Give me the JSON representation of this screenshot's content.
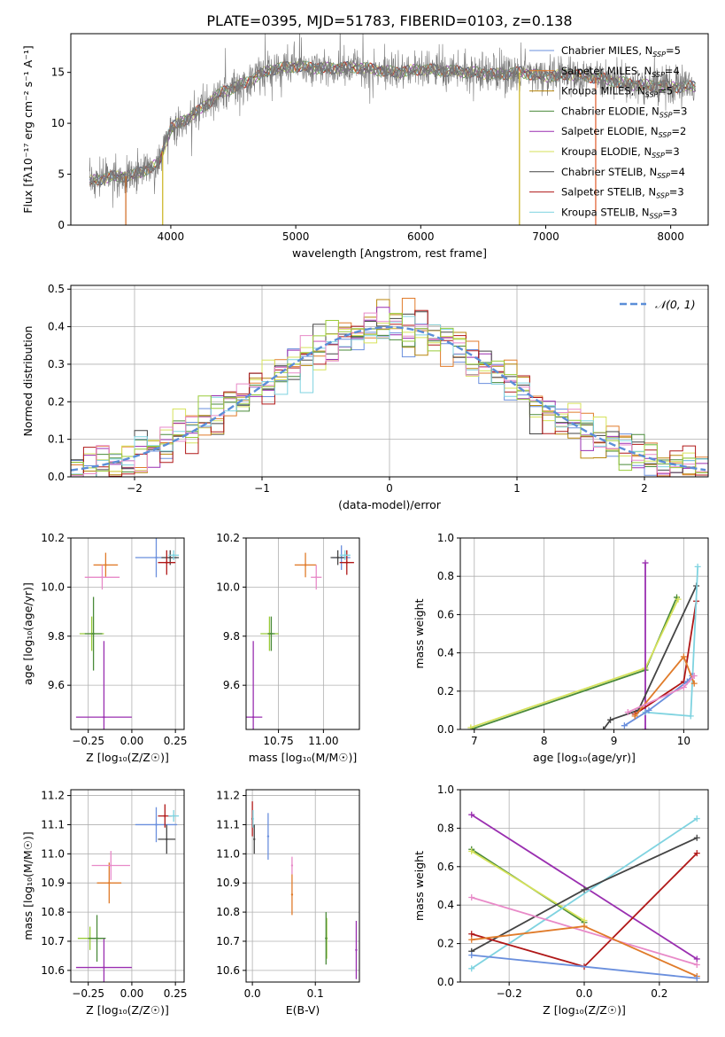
{
  "figure_title": "PLATE=0395, MJD=51783, FIBERID=0103, z=0.138",
  "colors": {
    "Chabrier MILES": "#6a8fdd",
    "Salpeter MILES": "#e07b2a",
    "Kroupa MILES": "#b8860b",
    "Chabrier ELODIE": "#4a8a3a",
    "Salpeter ELODIE": "#9a2fb0",
    "Kroupa ELODIE": "#d6e25a",
    "Chabrier STELIB": "#444444",
    "Salpeter STELIB": "#b01818",
    "Kroupa STELIB": "#7fd3e0",
    "pink": "#e88ac8",
    "lime": "#9acb3a",
    "normal_curve": "#5b8ed8",
    "grid": "#b0b0b0"
  },
  "chart_data": [
    {
      "id": "spectrum",
      "type": "line",
      "xlabel": "wavelength [Angstrom, rest frame]",
      "ylabel": "Flux [fλ10⁻¹⁷ erg cm⁻² s⁻¹ A⁻¹]",
      "xlim": [
        3200,
        8300
      ],
      "ylim": [
        0,
        18.8
      ],
      "xticks": [
        "4000",
        "5000",
        "6000",
        "7000",
        "8000"
      ],
      "yticks": [
        "0",
        "5",
        "10",
        "15"
      ],
      "legend_position": "top-right",
      "legend": [
        "Chabrier MILES, N_SSP=5",
        "Salpeter MILES, N_SSP=4",
        "Kroupa MILES, N_SSP=5",
        "Chabrier ELODIE, N_SSP=3",
        "Salpeter ELODIE, N_SSP=2",
        "Kroupa ELODIE, N_SSP=3",
        "Chabrier STELIB, N_SSP=4",
        "Salpeter STELIB, N_SSP=3",
        "Kroupa STELIB, N_SSP=3"
      ],
      "continuum": [
        [
          3350,
          4.3
        ],
        [
          3500,
          4.7
        ],
        [
          3700,
          4.9
        ],
        [
          3900,
          6.0
        ],
        [
          4000,
          9.5
        ],
        [
          4200,
          11.0
        ],
        [
          4400,
          13.0
        ],
        [
          4600,
          14.0
        ],
        [
          4800,
          15.3
        ],
        [
          5000,
          15.6
        ],
        [
          5200,
          15.4
        ],
        [
          5500,
          15.5
        ],
        [
          5800,
          15.0
        ],
        [
          6000,
          15.3
        ],
        [
          6300,
          15.1
        ],
        [
          6600,
          14.8
        ],
        [
          6800,
          15.0
        ],
        [
          7000,
          14.6
        ],
        [
          7200,
          14.8
        ],
        [
          7400,
          14.5
        ],
        [
          7700,
          13.8
        ],
        [
          8000,
          13.6
        ],
        [
          8200,
          13.6
        ]
      ],
      "dips": [
        [
          3640,
          0
        ],
        [
          3935,
          0
        ],
        [
          6790,
          0
        ],
        [
          7400,
          0
        ]
      ]
    },
    {
      "id": "residuals",
      "type": "histogram",
      "xlabel": "(data-model)/error",
      "ylabel": "Normed distribution",
      "xlim": [
        -2.5,
        2.5
      ],
      "ylim": [
        0,
        0.51
      ],
      "xticks": [
        "−2",
        "−1",
        "0",
        "1",
        "2"
      ],
      "yticks": [
        "0.0",
        "0.1",
        "0.2",
        "0.3",
        "0.4",
        "0.5"
      ],
      "legend_position": "top-right",
      "legend": [
        "𝒩(0, 1)"
      ],
      "bin_width": 0.1
    },
    {
      "id": "age-vs-Z",
      "type": "scatter",
      "xlabel": "Z [log₁₀(Z/Z☉)]",
      "ylabel": "age  [log₁₀(age/yr)]",
      "xlim": [
        -0.35,
        0.3
      ],
      "ylim": [
        9.42,
        10.2
      ],
      "xticks": [
        "−0.25",
        "0.00",
        "0.25"
      ],
      "yticks": [
        "9.6",
        "9.8",
        "10.0",
        "10.2"
      ],
      "points": [
        {
          "c": "Chabrier MILES",
          "x": 0.14,
          "xe": 0.12,
          "y": 10.12,
          "ye": 0.08
        },
        {
          "c": "Salpeter MILES",
          "x": -0.15,
          "xe": 0.07,
          "y": 10.09,
          "ye": 0.05
        },
        {
          "c": "pink",
          "x": -0.17,
          "xe": 0.1,
          "y": 10.04,
          "ye": 0.05
        },
        {
          "c": "lime",
          "x": -0.23,
          "xe": 0.07,
          "y": 9.81,
          "ye": 0.07
        },
        {
          "c": "Salpeter ELODIE",
          "x": -0.16,
          "xe": 0.16,
          "y": 9.47,
          "ye": 0.31
        },
        {
          "c": "Chabrier ELODIE",
          "x": -0.22,
          "xe": 0.05,
          "y": 9.81,
          "ye": 0.15
        },
        {
          "c": "Chabrier STELIB",
          "x": 0.22,
          "xe": 0.05,
          "y": 10.12,
          "ye": 0.03
        },
        {
          "c": "Salpeter STELIB",
          "x": 0.2,
          "xe": 0.05,
          "y": 10.1,
          "ye": 0.05
        },
        {
          "c": "Kroupa STELIB",
          "x": 0.24,
          "xe": 0.03,
          "y": 10.13,
          "ye": 0.02
        }
      ]
    },
    {
      "id": "age-vs-mass",
      "type": "scatter",
      "xlabel": "mass [log₁₀(M/M☉)]",
      "ylabel": "",
      "xlim": [
        10.57,
        11.2
      ],
      "ylim": [
        9.42,
        10.2
      ],
      "xticks": [
        "10.75",
        "11.00"
      ],
      "yticks": [
        "9.6",
        "9.8",
        "10.0",
        "10.2"
      ],
      "points": [
        {
          "c": "Chabrier MILES",
          "x": 11.1,
          "xe": 0.05,
          "y": 10.12,
          "ye": 0.05
        },
        {
          "c": "Salpeter MILES",
          "x": 10.9,
          "xe": 0.06,
          "y": 10.09,
          "ye": 0.05
        },
        {
          "c": "pink",
          "x": 10.96,
          "xe": 0.03,
          "y": 10.04,
          "ye": 0.05
        },
        {
          "c": "lime",
          "x": 10.7,
          "xe": 0.05,
          "y": 9.81,
          "ye": 0.07
        },
        {
          "c": "Salpeter ELODIE",
          "x": 10.61,
          "xe": 0.05,
          "y": 9.47,
          "ye": 0.31
        },
        {
          "c": "Chabrier ELODIE",
          "x": 10.71,
          "xe": 0.02,
          "y": 9.81,
          "ye": 0.07
        },
        {
          "c": "Chabrier STELIB",
          "x": 11.08,
          "xe": 0.04,
          "y": 10.12,
          "ye": 0.03
        },
        {
          "c": "Salpeter STELIB",
          "x": 11.13,
          "xe": 0.04,
          "y": 10.1,
          "ye": 0.05
        },
        {
          "c": "Kroupa STELIB",
          "x": 11.12,
          "xe": 0.03,
          "y": 10.13,
          "ye": 0.02
        }
      ]
    },
    {
      "id": "weight-vs-age",
      "type": "line",
      "xlabel": "age  [log₁₀(age/yr)]",
      "ylabel": "mass weight",
      "xlim": [
        6.8,
        10.35
      ],
      "ylim": [
        0,
        1
      ],
      "xticks": [
        "7",
        "8",
        "9",
        "10"
      ],
      "yticks": [
        "0.0",
        "0.2",
        "0.4",
        "0.6",
        "0.8",
        "1.0"
      ],
      "series": [
        {
          "c": "Chabrier ELODIE",
          "points": [
            [
              6.95,
              0.0
            ],
            [
              9.45,
              0.31
            ],
            [
              9.9,
              0.69
            ]
          ]
        },
        {
          "c": "Kroupa ELODIE",
          "points": [
            [
              6.95,
              0.01
            ],
            [
              9.45,
              0.32
            ],
            [
              9.92,
              0.68
            ]
          ]
        },
        {
          "c": "Salpeter ELODIE",
          "points": [
            [
              9.45,
              0.0
            ],
            [
              9.45,
              0.87
            ]
          ]
        },
        {
          "c": "Chabrier STELIB",
          "points": [
            [
              8.85,
              0.0
            ],
            [
              8.95,
              0.05
            ],
            [
              9.35,
              0.1
            ],
            [
              10.18,
              0.75
            ]
          ]
        },
        {
          "c": "Salpeter STELIB",
          "points": [
            [
              9.3,
              0.08
            ],
            [
              10.0,
              0.25
            ],
            [
              10.18,
              0.67
            ]
          ]
        },
        {
          "c": "Kroupa STELIB",
          "points": [
            [
              9.45,
              0.09
            ],
            [
              10.1,
              0.07
            ],
            [
              10.2,
              0.85
            ]
          ]
        },
        {
          "c": "Chabrier MILES",
          "points": [
            [
              9.15,
              0.02
            ],
            [
              9.5,
              0.1
            ],
            [
              10.05,
              0.25
            ],
            [
              10.12,
              0.28
            ]
          ]
        },
        {
          "c": "Salpeter MILES",
          "points": [
            [
              9.3,
              0.07
            ],
            [
              10.0,
              0.38
            ],
            [
              10.15,
              0.24
            ]
          ]
        },
        {
          "c": "pink",
          "points": [
            [
              9.2,
              0.09
            ],
            [
              10.0,
              0.22
            ],
            [
              10.15,
              0.28
            ]
          ]
        }
      ]
    },
    {
      "id": "mass-vs-Z",
      "type": "scatter",
      "xlabel": "Z [log₁₀(Z/Z☉)]",
      "ylabel": "mass [log₁₀(M/M☉)]",
      "xlim": [
        -0.35,
        0.3
      ],
      "ylim": [
        10.56,
        11.22
      ],
      "xticks": [
        "−0.25",
        "0.00",
        "0.25"
      ],
      "yticks": [
        "10.6",
        "10.7",
        "10.8",
        "10.9",
        "11.0",
        "11.1",
        "11.2"
      ],
      "points": [
        {
          "c": "Chabrier MILES",
          "x": 0.14,
          "xe": 0.12,
          "y": 11.1,
          "ye": 0.06
        },
        {
          "c": "Salpeter MILES",
          "x": -0.13,
          "xe": 0.07,
          "y": 10.9,
          "ye": 0.07
        },
        {
          "c": "pink",
          "x": -0.12,
          "xe": 0.11,
          "y": 10.96,
          "ye": 0.05
        },
        {
          "c": "lime",
          "x": -0.24,
          "xe": 0.07,
          "y": 10.71,
          "ye": 0.04
        },
        {
          "c": "Salpeter ELODIE",
          "x": -0.16,
          "xe": 0.16,
          "y": 10.61,
          "ye": 0.1
        },
        {
          "c": "Chabrier ELODIE",
          "x": -0.2,
          "xe": 0.05,
          "y": 10.71,
          "ye": 0.08
        },
        {
          "c": "Chabrier STELIB",
          "x": 0.2,
          "xe": 0.05,
          "y": 11.05,
          "ye": 0.05
        },
        {
          "c": "Salpeter STELIB",
          "x": 0.19,
          "xe": 0.04,
          "y": 11.13,
          "ye": 0.04
        },
        {
          "c": "Kroupa STELIB",
          "x": 0.24,
          "xe": 0.03,
          "y": 11.13,
          "ye": 0.02
        }
      ]
    },
    {
      "id": "mass-vs-EBV",
      "type": "scatter",
      "xlabel": "E(B-V)",
      "ylabel": "",
      "xlim": [
        -0.01,
        0.17
      ],
      "ylim": [
        10.56,
        11.22
      ],
      "xticks": [
        "0.0",
        "0.1"
      ],
      "yticks": [
        "10.6",
        "10.7",
        "10.8",
        "10.9",
        "11.0",
        "11.1",
        "11.2"
      ],
      "points": [
        {
          "c": "Chabrier MILES",
          "x": 0.025,
          "xe": 0,
          "y": 11.06,
          "ye": 0.08
        },
        {
          "c": "Salpeter MILES",
          "x": 0.063,
          "xe": 0,
          "y": 10.86,
          "ye": 0.07
        },
        {
          "c": "pink",
          "x": 0.063,
          "xe": 0,
          "y": 10.96,
          "ye": 0.03
        },
        {
          "c": "lime",
          "x": 0.118,
          "xe": 0,
          "y": 10.71,
          "ye": 0.07
        },
        {
          "c": "Salpeter ELODIE",
          "x": 0.165,
          "xe": 0,
          "y": 10.67,
          "ye": 0.1
        },
        {
          "c": "Chabrier ELODIE",
          "x": 0.117,
          "xe": 0,
          "y": 10.71,
          "ye": 0.09
        },
        {
          "c": "Chabrier STELIB",
          "x": 0.003,
          "xe": 0,
          "y": 11.05,
          "ye": 0.05
        },
        {
          "c": "Salpeter STELIB",
          "x": 0.0,
          "xe": 0,
          "y": 11.12,
          "ye": 0.06
        },
        {
          "c": "Kroupa STELIB",
          "x": 0.001,
          "xe": 0,
          "y": 11.12,
          "ye": 0.03
        }
      ]
    },
    {
      "id": "weight-vs-Z",
      "type": "line",
      "xlabel": "Z [log₁₀(Z/Z☉)]",
      "ylabel": "mass weight",
      "xlim": [
        -0.33,
        0.33
      ],
      "ylim": [
        0,
        1
      ],
      "xticks": [
        "−0.2",
        "0.0",
        "0.2"
      ],
      "yticks": [
        "0.0",
        "0.2",
        "0.4",
        "0.6",
        "0.8",
        "1.0"
      ],
      "series": [
        {
          "c": "Salpeter ELODIE",
          "points": [
            [
              -0.3,
              0.87
            ],
            [
              0.3,
              0.12
            ]
          ]
        },
        {
          "c": "Chabrier ELODIE",
          "points": [
            [
              -0.3,
              0.69
            ],
            [
              0.0,
              0.31
            ]
          ]
        },
        {
          "c": "Kroupa ELODIE",
          "points": [
            [
              -0.3,
              0.68
            ],
            [
              0.0,
              0.32
            ]
          ]
        },
        {
          "c": "Kroupa STELIB",
          "points": [
            [
              -0.3,
              0.07
            ],
            [
              0.3,
              0.85
            ]
          ]
        },
        {
          "c": "Chabrier STELIB",
          "points": [
            [
              -0.3,
              0.16
            ],
            [
              0.0,
              0.48
            ],
            [
              0.3,
              0.75
            ]
          ]
        },
        {
          "c": "Salpeter STELIB",
          "points": [
            [
              -0.3,
              0.25
            ],
            [
              0.0,
              0.08
            ],
            [
              0.3,
              0.67
            ]
          ]
        },
        {
          "c": "pink",
          "points": [
            [
              -0.3,
              0.44
            ],
            [
              0.3,
              0.09
            ]
          ]
        },
        {
          "c": "Salpeter MILES",
          "points": [
            [
              -0.3,
              0.22
            ],
            [
              0.0,
              0.29
            ],
            [
              0.3,
              0.03
            ]
          ]
        },
        {
          "c": "Chabrier MILES",
          "points": [
            [
              -0.3,
              0.14
            ],
            [
              0.3,
              0.02
            ]
          ]
        }
      ]
    }
  ]
}
